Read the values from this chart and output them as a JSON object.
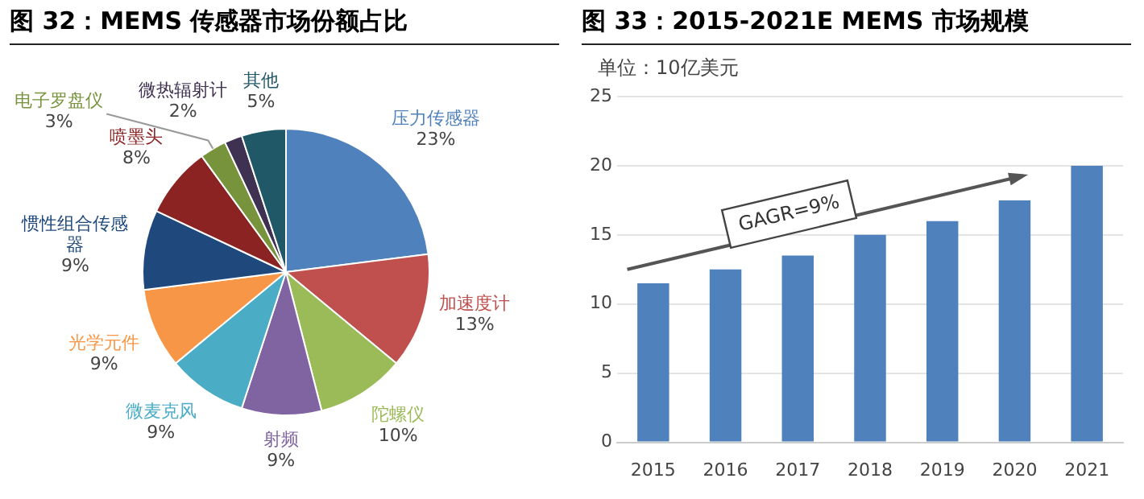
{
  "chart_data": [
    {
      "type": "pie",
      "title": "图 32：MEMS 传感器市场份额占比",
      "categories": [
        "压力传感器",
        "加速度计",
        "陀螺仪",
        "射频",
        "微麦克风",
        "光学元件",
        "惯性组合传感器",
        "喷墨头",
        "电子罗盘仪",
        "微热辐射计",
        "其他"
      ],
      "values": [
        23,
        13,
        10,
        9,
        9,
        9,
        9,
        8,
        3,
        2,
        5
      ],
      "value_labels": [
        "23%",
        "13%",
        "10%",
        "9%",
        "9%",
        "9%",
        "9%",
        "8%",
        "3%",
        "2%",
        "5%"
      ],
      "colors": [
        "#4f81bd",
        "#c0504d",
        "#9bbb59",
        "#8064a2",
        "#4bacc6",
        "#f79646",
        "#1f497d",
        "#8b2323",
        "#77933c",
        "#3f3151",
        "#215868"
      ],
      "legend": false
    },
    {
      "type": "bar",
      "title": "图 33：2015-2021E MEMS 市场规模",
      "subtitle": "单位：10亿美元",
      "categories": [
        "2015",
        "2016",
        "2017",
        "2018",
        "2019",
        "2020",
        "2021"
      ],
      "values": [
        11.5,
        12.5,
        13.5,
        15,
        16,
        17.5,
        20
      ],
      "color": "#4f81bd",
      "ylim": [
        0,
        25
      ],
      "yticks": [
        0,
        5,
        10,
        15,
        20,
        25
      ],
      "grid": "y",
      "legend": false,
      "annotations": [
        "GAGR=9%"
      ]
    }
  ]
}
